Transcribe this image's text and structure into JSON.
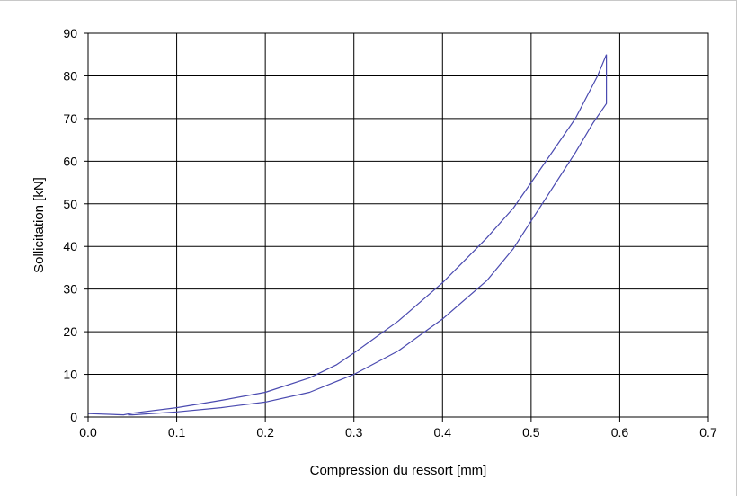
{
  "chart_data": {
    "type": "line",
    "title": "",
    "xlabel": "Compression du ressort [mm]",
    "ylabel": "Sollicitation [kN]",
    "xlim": [
      0,
      0.7
    ],
    "ylim": [
      0,
      90
    ],
    "xticks": [
      0.0,
      0.1,
      0.2,
      0.3,
      0.4,
      0.5,
      0.6,
      0.7
    ],
    "xtick_labels": [
      "0.0",
      "0.1",
      "0.2",
      "0.3",
      "0.4",
      "0.5",
      "0.6",
      "0.7"
    ],
    "yticks": [
      0,
      10,
      20,
      30,
      40,
      50,
      60,
      70,
      80,
      90
    ],
    "ytick_labels": [
      "0",
      "10",
      "20",
      "30",
      "40",
      "50",
      "60",
      "70",
      "80",
      "90"
    ],
    "grid": true,
    "legend": "none",
    "line_color": "#4a4ab0",
    "series": [
      {
        "x": [
          0.0,
          0.04,
          0.05,
          0.1,
          0.15,
          0.2,
          0.25,
          0.28,
          0.3,
          0.35,
          0.4,
          0.45,
          0.48,
          0.5,
          0.55,
          0.575,
          0.585
        ],
        "y": [
          0.8,
          0.5,
          0.9,
          2.2,
          3.9,
          5.8,
          9.2,
          12.2,
          15.0,
          22.5,
          31.5,
          42.0,
          49.0,
          55.0,
          70.0,
          80.0,
          85.0
        ]
      },
      {
        "x": [
          0.585,
          0.585,
          0.57,
          0.55,
          0.5,
          0.48,
          0.45,
          0.4,
          0.35,
          0.3,
          0.25,
          0.2,
          0.15,
          0.1,
          0.05,
          0.045
        ],
        "y": [
          85.0,
          73.5,
          69.0,
          62.0,
          46.0,
          39.5,
          32.0,
          23.0,
          15.5,
          10.0,
          5.8,
          3.5,
          2.2,
          1.2,
          0.5,
          0.5
        ]
      }
    ]
  }
}
